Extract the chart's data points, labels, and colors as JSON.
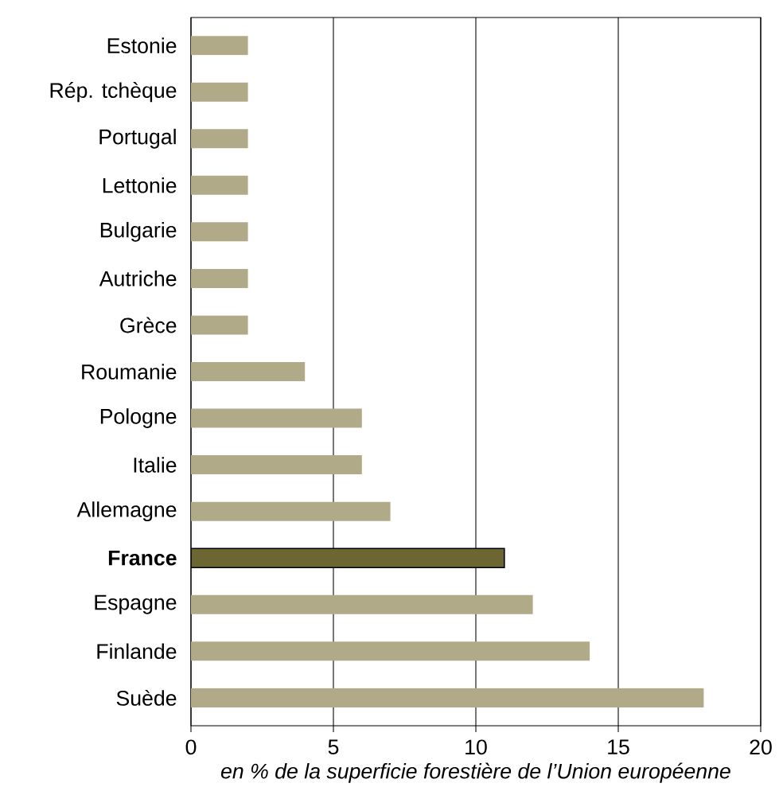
{
  "chart_data": {
    "type": "bar",
    "orientation": "horizontal",
    "xlabel": "en % de la superficie forestière de l’Union européenne",
    "categories": [
      "Estonie",
      "Rép. tchèque",
      "Portugal",
      "Lettonie",
      "Bulgarie",
      "Autriche",
      "Grèce",
      "Roumanie",
      "Pologne",
      "Italie",
      "Allemagne",
      "**France**",
      "Espagne",
      "Finlande",
      "Suède"
    ],
    "values": [
      2,
      2,
      2,
      2,
      2,
      2,
      2,
      4,
      6,
      6,
      7,
      11,
      12,
      14,
      18
    ],
    "colors": [
      "#b1aa88",
      "#b1aa88",
      "#b1aa88",
      "#b1aa88",
      "#b1aa88",
      "#b1aa88",
      "#b1aa88",
      "#b1aa88",
      "#b1aa88",
      "#b1aa88",
      "#b1aa88",
      "#6b6632",
      "#b1aa88",
      "#b1aa88",
      "#b1aa88"
    ],
    "xlim": [
      0,
      20
    ],
    "xticks": [
      0,
      5,
      10,
      15,
      20
    ],
    "grid": "x"
  }
}
